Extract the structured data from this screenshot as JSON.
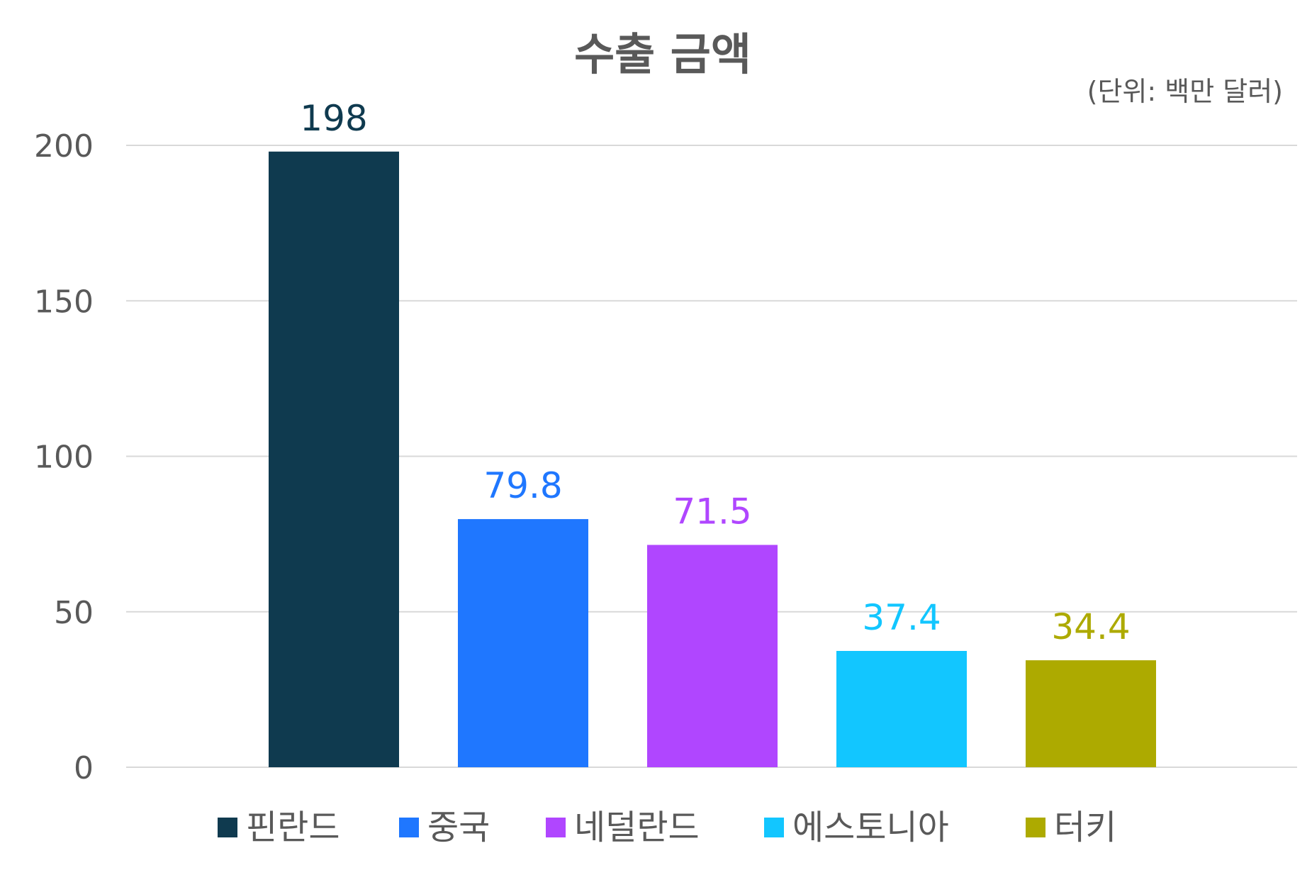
{
  "chart_data": {
    "type": "bar",
    "title": "수출 금액",
    "unit_label": "(단위: 백만 달러)",
    "categories": [
      "핀란드",
      "중국",
      "네덜란드",
      "에스토니아",
      "터키"
    ],
    "values": [
      198,
      79.8,
      71.5,
      37.4,
      34.4
    ],
    "value_labels": [
      "198",
      "79.8",
      "71.5",
      "37.4",
      "34.4"
    ],
    "colors": [
      "#0f3a4f",
      "#1f77ff",
      "#b046ff",
      "#12c6ff",
      "#adaa00"
    ],
    "ylim": [
      0,
      200
    ],
    "yticks": [
      0,
      50,
      100,
      150,
      200
    ],
    "grid": true,
    "legend": "bottom",
    "xlabel": "",
    "ylabel": ""
  }
}
